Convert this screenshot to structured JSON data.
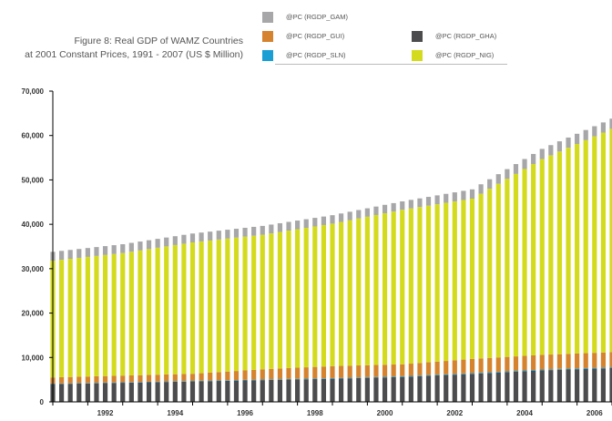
{
  "colors": {
    "gam": "#a7a7a9",
    "gui": "#d5832f",
    "sln": "#1b9ed3",
    "gha": "#4c4c4e",
    "nig": "#d4db1e",
    "axis": "#000000",
    "grid": "#bbbbbb"
  },
  "chart_data": {
    "type": "bar",
    "stacked": true,
    "title": "Figure 8: Real GDP of WAMZ Countries at 2001 Constant Prices, 1991 - 2007 (US $ Million)",
    "title_lines": [
      "Figure 8: Real GDP of WAMZ Countries",
      "at 2001 Constant Prices, 1991 - 2007 (US $ Million)"
    ],
    "x_tick_labels": [
      "1992",
      "1994",
      "1996",
      "1998",
      "2000",
      "2002",
      "2004",
      "2006"
    ],
    "y_tick_labels": [
      "0",
      "10,000",
      "20,000",
      "30,000",
      "40,000",
      "50,000",
      "60,000",
      "70,000"
    ],
    "ylim": [
      0,
      70000
    ],
    "xlim": [
      1991,
      2007
    ],
    "grid": false,
    "legend_position": "top-right",
    "series": [
      {
        "name": "@PC (RGDP_GHA)",
        "color_key": "gha",
        "anchors_x": [
          1991,
          1993,
          1995,
          1997,
          1999,
          2001,
          2003,
          2005,
          2007
        ],
        "anchors_y": [
          4000,
          4300,
          4600,
          4900,
          5200,
          5600,
          6300,
          7100,
          7600
        ]
      },
      {
        "name": "@PC (RGDP_SLN)",
        "color_key": "sln",
        "anchors_x": [
          1991,
          2007
        ],
        "anchors_y": [
          100,
          200
        ]
      },
      {
        "name": "@PC (RGDP_GUI)",
        "color_key": "gui",
        "anchors_x": [
          1991,
          1993,
          1995,
          1997,
          1999,
          2001,
          2003,
          2005,
          2007
        ],
        "anchors_y": [
          1400,
          1500,
          1600,
          2300,
          2700,
          2700,
          3200,
          3300,
          3400
        ]
      },
      {
        "name": "@PC (RGDP_NIG)",
        "color_key": "nig",
        "anchors_x": [
          1991,
          1993,
          1995,
          1997,
          1999,
          2001,
          2003,
          2005,
          2007
        ],
        "anchors_y": [
          26300,
          27600,
          29600,
          30300,
          32100,
          34800,
          36100,
          44100,
          50300
        ]
      },
      {
        "name": "@PC (RGDP_GAM)",
        "color_key": "gam",
        "anchors_x": [
          1991,
          1993,
          1995,
          1997,
          1999,
          2001,
          2003,
          2005,
          2007
        ],
        "anchors_y": [
          2000,
          2000,
          2000,
          2000,
          1900,
          1900,
          2100,
          2300,
          2300
        ]
      }
    ]
  },
  "legend": [
    {
      "label": "@PC (RGDP_GAM)",
      "color_key": "gam"
    },
    {
      "label": "@PC (RGDP_GUI)",
      "color_key": "gui"
    },
    {
      "label": "@PC (RGDP_SLN)",
      "color_key": "sln"
    },
    {
      "label": "@PC (RGDP_GHA)",
      "color_key": "gha"
    },
    {
      "label": "@PC (RGDP_NIG)",
      "color_key": "nig"
    }
  ]
}
